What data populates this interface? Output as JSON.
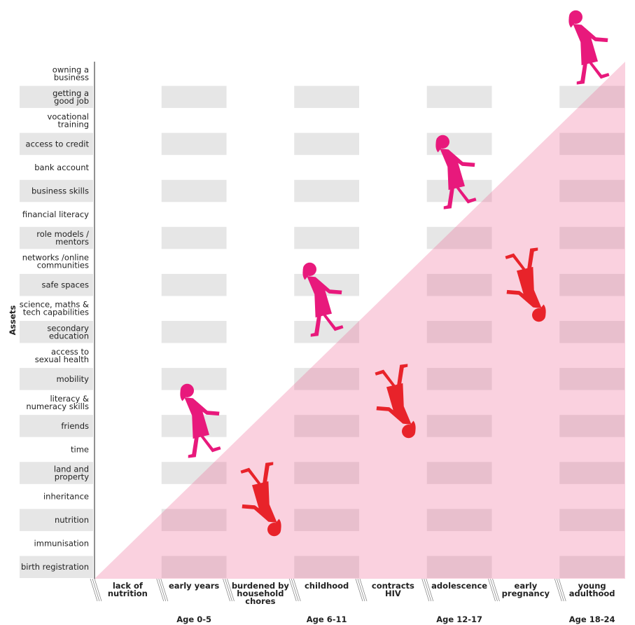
{
  "axis_title": "Assets",
  "assets": [
    [
      "owning a",
      "business"
    ],
    [
      "getting a",
      "good job"
    ],
    [
      "vocational",
      "training"
    ],
    [
      "access to credit"
    ],
    [
      "bank account"
    ],
    [
      "business skills"
    ],
    [
      "financial literacy"
    ],
    [
      "role models /",
      "mentors"
    ],
    [
      "networks /online",
      "communities"
    ],
    [
      "safe spaces"
    ],
    [
      "science, maths &",
      "tech capabilities"
    ],
    [
      "secondary",
      "education"
    ],
    [
      "access to",
      "sexual health"
    ],
    [
      "mobility"
    ],
    [
      "literacy &",
      "numeracy skills"
    ],
    [
      "friends"
    ],
    [
      "time"
    ],
    [
      "land and",
      "property"
    ],
    [
      "inheritance"
    ],
    [
      "nutrition"
    ],
    [
      "immunisation"
    ],
    [
      "birth registration"
    ]
  ],
  "stages": [
    {
      "lines": [
        "lack of",
        "nutrition"
      ],
      "color": "#e8232a"
    },
    {
      "lines": [
        "early years"
      ],
      "color": "#222222"
    },
    {
      "lines": [
        "burdened by",
        "household",
        "chores"
      ],
      "color": "#e8232a"
    },
    {
      "lines": [
        "childhood"
      ],
      "color": "#222222"
    },
    {
      "lines": [
        "contracts",
        "HIV"
      ],
      "color": "#e8232a"
    },
    {
      "lines": [
        "adolescence"
      ],
      "color": "#222222"
    },
    {
      "lines": [
        "early",
        "pregnancy"
      ],
      "color": "#e8232a"
    },
    {
      "lines": [
        "young",
        "adulthood"
      ],
      "color": "#222222"
    }
  ],
  "ages": [
    "Age 0-5",
    "Age 6-11",
    "Age 12-17",
    "Age 18-24"
  ]
}
